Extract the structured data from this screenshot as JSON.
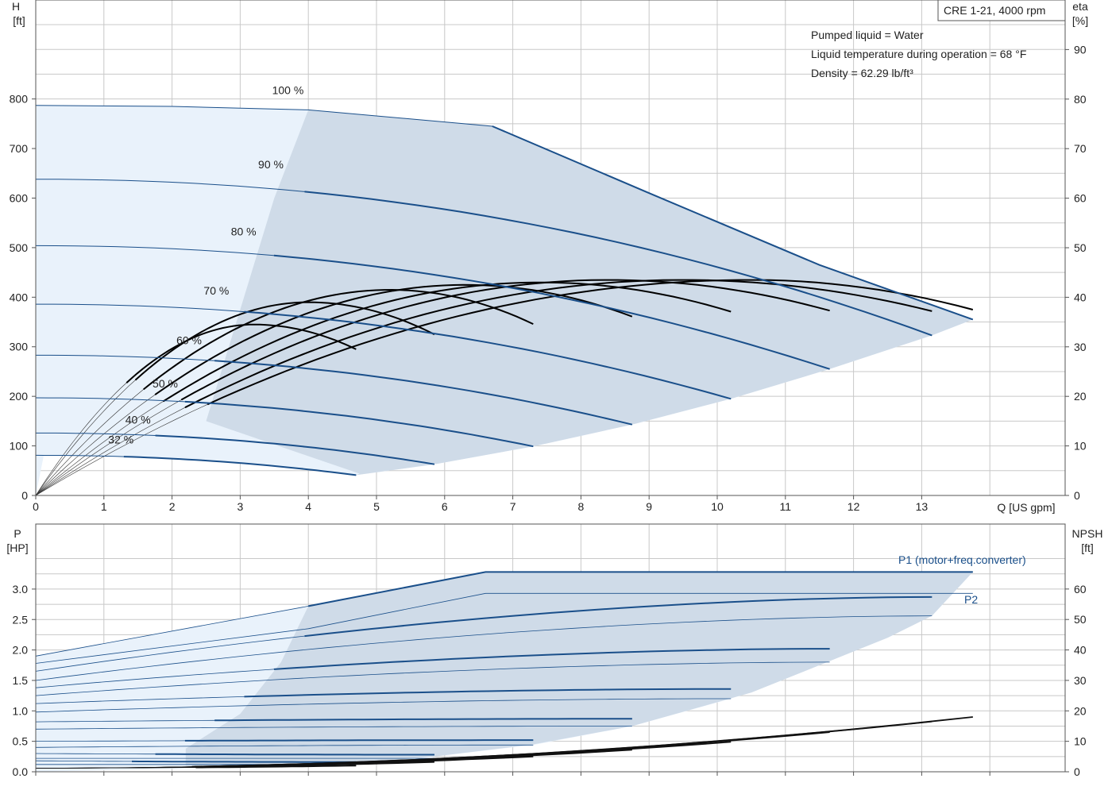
{
  "title_box": "CRE 1-21, 4000 rpm",
  "info": {
    "line1": "Pumped liquid = Water",
    "line2": "Liquid temperature during operation = 68 °F",
    "line3": "Density = 62.29 lb/ft³"
  },
  "colors": {
    "curve": "#1a4f8a",
    "area_light": "#e9f2fb",
    "area_dark": "#cfdbe8",
    "eff": "#000000"
  },
  "chart_data": [
    {
      "type": "line",
      "name": "head",
      "xlabel": "Q [US gpm]",
      "ylabel_left": [
        "H",
        "[ft]"
      ],
      "ylabel_right": [
        "eta",
        "[%]"
      ],
      "xlim": [
        0,
        15
      ],
      "ylim_left": [
        0,
        800
      ],
      "ylim_right": [
        0,
        100
      ],
      "xticks": [
        "0",
        "1",
        "2",
        "3",
        "4",
        "5",
        "6",
        "7",
        "8",
        "9",
        "10",
        "11",
        "12",
        "13"
      ],
      "yticks_left": [
        "0",
        "100",
        "200",
        "300",
        "400",
        "500",
        "600",
        "700",
        "800"
      ],
      "yticks_right": [
        "0",
        "10",
        "20",
        "30",
        "40",
        "50",
        "60",
        "70",
        "80",
        "90"
      ],
      "speed_labels": [
        {
          "text": "100 %",
          "q": 3.7,
          "h": 810
        },
        {
          "text": "90 %",
          "q": 3.45,
          "h": 660
        },
        {
          "text": "80 %",
          "q": 3.05,
          "h": 525
        },
        {
          "text": "70 %",
          "q": 2.65,
          "h": 405
        },
        {
          "text": "60 %",
          "q": 2.25,
          "h": 305
        },
        {
          "text": "50 %",
          "q": 1.9,
          "h": 218
        },
        {
          "text": "40 %",
          "q": 1.5,
          "h": 145
        },
        {
          "text": "32 %",
          "q": 1.25,
          "h": 105
        }
      ],
      "head_curves": [
        {
          "pct": 100,
          "h0": 787,
          "qmax": 13.75,
          "hend": 355,
          "pts": [
            [
              0,
              787
            ],
            [
              2,
              785
            ],
            [
              4,
              778
            ],
            [
              6.7,
              745
            ],
            [
              9,
              610
            ],
            [
              11.5,
              465
            ],
            [
              13.75,
              355
            ]
          ]
        },
        {
          "pct": 90,
          "h0": 638,
          "qmax": 13.15,
          "hend": 323
        },
        {
          "pct": 80,
          "h0": 504,
          "qmax": 11.65,
          "hend": 255
        },
        {
          "pct": 70,
          "h0": 386,
          "qmax": 10.2,
          "hend": 195
        },
        {
          "pct": 60,
          "h0": 283,
          "qmax": 8.75,
          "hend": 143
        },
        {
          "pct": 50,
          "h0": 197,
          "qmax": 7.3,
          "hend": 99
        },
        {
          "pct": 40,
          "h0": 126,
          "qmax": 5.85,
          "hend": 63
        },
        {
          "pct": 32,
          "h0": 81,
          "qmax": 4.7,
          "hend": 41
        }
      ],
      "eff_curves": [
        {
          "pct": 100,
          "qmax": 13.75,
          "peak": 43.5,
          "qpeak": 10.5,
          "qend_eta": 37.5
        },
        {
          "pct": 90,
          "qmax": 13.15,
          "peak": 43.5,
          "qpeak": 9.5,
          "qend_eta": 37.2
        },
        {
          "pct": 80,
          "qmax": 11.65,
          "peak": 43.5,
          "qpeak": 8.4,
          "qend_eta": 37.3
        },
        {
          "pct": 70,
          "qmax": 10.2,
          "peak": 43.0,
          "qpeak": 7.4,
          "qend_eta": 37.1
        },
        {
          "pct": 60,
          "qmax": 8.75,
          "peak": 42.5,
          "qpeak": 6.3,
          "qend_eta": 36.1
        },
        {
          "pct": 50,
          "qmax": 7.3,
          "peak": 41.5,
          "qpeak": 5.2,
          "qend_eta": 34.6
        },
        {
          "pct": 40,
          "qmax": 5.85,
          "peak": 39.0,
          "qpeak": 4.0,
          "qend_eta": 32.5
        },
        {
          "pct": 32,
          "qmax": 4.7,
          "peak": 34.5,
          "qpeak": 3.2,
          "qend_eta": 29.5
        }
      ]
    },
    {
      "type": "line",
      "name": "power",
      "xlim": [
        0,
        15
      ],
      "ylabel_left": [
        "P",
        "[HP]"
      ],
      "ylabel_right": [
        "NPSH",
        "[ft]"
      ],
      "ylim_left": [
        0,
        3.5
      ],
      "ylim_right": [
        0,
        70
      ],
      "yticks_left": [
        "0.0",
        "0.5",
        "1.0",
        "1.5",
        "2.0",
        "2.5",
        "3.0"
      ],
      "yticks_right": [
        "0",
        "10",
        "20",
        "30",
        "40",
        "50",
        "60"
      ],
      "p1_label": "P1 (motor+freq.converter)",
      "p2_label": "P2",
      "p1_curves": [
        {
          "pct": 100,
          "qmax": 13.75,
          "pts": [
            [
              0,
              1.9
            ],
            [
              4,
              2.72
            ],
            [
              6.6,
              3.28
            ],
            [
              13.75,
              3.28
            ]
          ]
        },
        {
          "pct": 90,
          "qmax": 13.15,
          "p0": 1.65,
          "pend": 2.87
        },
        {
          "pct": 80,
          "qmax": 11.65,
          "p0": 1.38,
          "pend": 2.02
        },
        {
          "pct": 70,
          "qmax": 10.2,
          "p0": 1.12,
          "pend": 1.36
        },
        {
          "pct": 60,
          "qmax": 8.75,
          "p0": 0.82,
          "pend": 0.87
        },
        {
          "pct": 50,
          "qmax": 7.3,
          "p0": 0.5,
          "pend": 0.52
        },
        {
          "pct": 40,
          "qmax": 5.85,
          "p0": 0.3,
          "pend": 0.28
        },
        {
          "pct": 32,
          "qmax": 4.7,
          "p0": 0.18,
          "pend": 0.16
        }
      ],
      "p2_curves": [
        {
          "pct": 100,
          "qmax": 13.75,
          "pts": [
            [
              0,
              1.78
            ],
            [
              4,
              2.35
            ],
            [
              6.6,
              2.93
            ],
            [
              13.75,
              2.93
            ]
          ]
        },
        {
          "pct": 90,
          "qmax": 13.15,
          "p0": 1.5,
          "pend": 2.56
        },
        {
          "pct": 80,
          "qmax": 11.65,
          "p0": 1.25,
          "pend": 1.8
        },
        {
          "pct": 70,
          "qmax": 10.2,
          "p0": 0.98,
          "pend": 1.2
        },
        {
          "pct": 60,
          "qmax": 8.75,
          "p0": 0.7,
          "pend": 0.75
        },
        {
          "pct": 50,
          "qmax": 7.3,
          "p0": 0.4,
          "pend": 0.44
        },
        {
          "pct": 40,
          "qmax": 5.85,
          "p0": 0.22,
          "pend": 0.22
        },
        {
          "pct": 32,
          "qmax": 4.7,
          "p0": 0.12,
          "pend": 0.12
        }
      ],
      "npsh_curves": [
        {
          "qmax": 13.75,
          "nend": 18
        },
        {
          "qmax": 13.15,
          "nend": 16.5
        },
        {
          "qmax": 11.65,
          "nend": 13
        },
        {
          "qmax": 10.2,
          "nend": 9.8
        },
        {
          "qmax": 8.75,
          "nend": 7.2
        },
        {
          "qmax": 7.3,
          "nend": 5
        },
        {
          "qmax": 5.85,
          "nend": 3.2
        },
        {
          "qmax": 4.7,
          "nend": 2
        }
      ]
    }
  ]
}
